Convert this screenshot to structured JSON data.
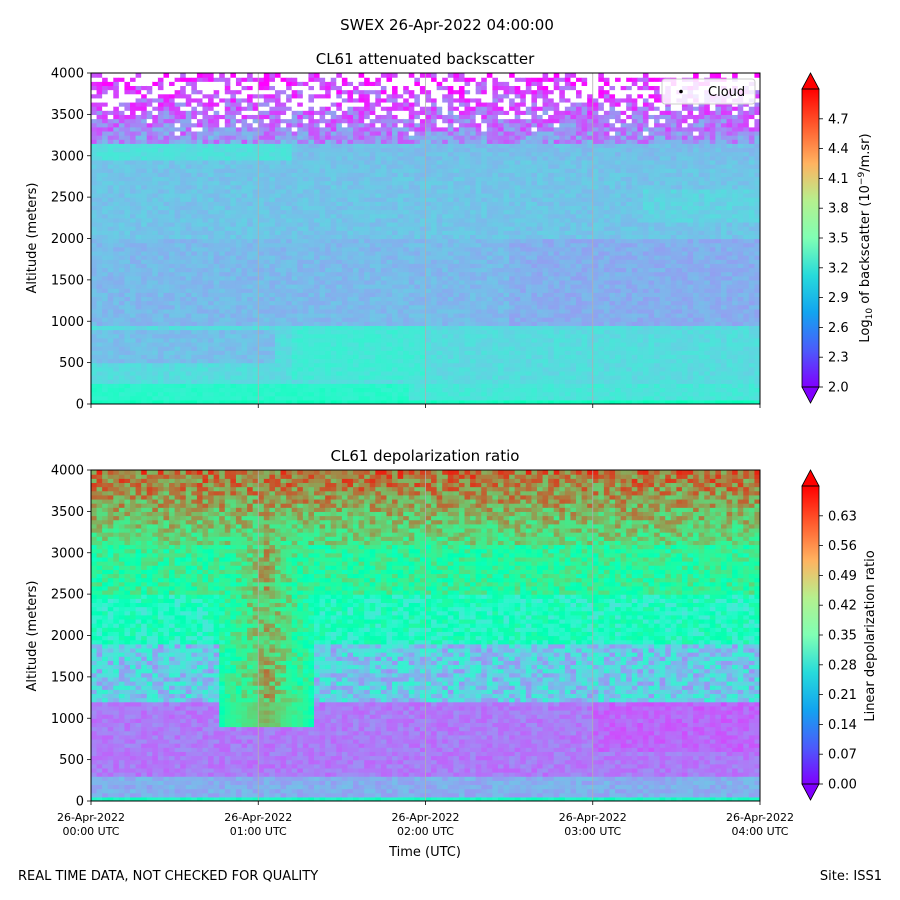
{
  "figure_title": "SWEX 26-Apr-2022 04:00:00",
  "footer_left": "REAL TIME DATA, NOT CHECKED FOR QUALITY",
  "footer_right": "Site: ISS1",
  "chart_data": [
    {
      "type": "heatmap",
      "title": "CL61 attenuated backscatter",
      "xlabel": "",
      "ylabel": "Altitude (meters)",
      "ylim": [
        0,
        4000
      ],
      "yticks": [
        "0",
        "500",
        "1000",
        "1500",
        "2000",
        "2500",
        "3000",
        "3500",
        "4000"
      ],
      "xlim_hours": [
        0,
        4
      ],
      "colorbar_label": "Log10 of backscatter (10^-9/m.sr)",
      "colorbar_range": [
        2.0,
        5.0
      ],
      "colorbar_ticks": [
        "2.0",
        "2.3",
        "2.6",
        "2.9",
        "3.2",
        "3.5",
        "3.8",
        "4.1",
        "4.4",
        "4.7"
      ],
      "legend": [
        "Cloud"
      ],
      "legend_position": "top-right",
      "colormap": "rainbow",
      "grid": "vertical at each hour"
    },
    {
      "type": "heatmap",
      "title": "CL61 depolarization ratio",
      "xlabel": "Time (UTC)",
      "ylabel": "Altitude (meters)",
      "ylim": [
        0,
        4000
      ],
      "yticks": [
        "0",
        "500",
        "1000",
        "1500",
        "2000",
        "2500",
        "3000",
        "3500",
        "4000"
      ],
      "xlim_hours": [
        0,
        4
      ],
      "xticks": [
        {
          "hour": 0,
          "date": "26-Apr-2022",
          "time": "00:00 UTC"
        },
        {
          "hour": 1,
          "date": "26-Apr-2022",
          "time": "01:00 UTC"
        },
        {
          "hour": 2,
          "date": "26-Apr-2022",
          "time": "02:00 UTC"
        },
        {
          "hour": 3,
          "date": "26-Apr-2022",
          "time": "03:00 UTC"
        },
        {
          "hour": 4,
          "date": "26-Apr-2022",
          "time": "04:00 UTC"
        }
      ],
      "colorbar_label": "Linear depolarization ratio",
      "colorbar_range": [
        0.0,
        0.7
      ],
      "colorbar_ticks": [
        "0.00",
        "0.07",
        "0.14",
        "0.21",
        "0.28",
        "0.35",
        "0.42",
        "0.49",
        "0.56",
        "0.63"
      ],
      "colormap": "rainbow",
      "grid": "vertical at each hour"
    }
  ]
}
